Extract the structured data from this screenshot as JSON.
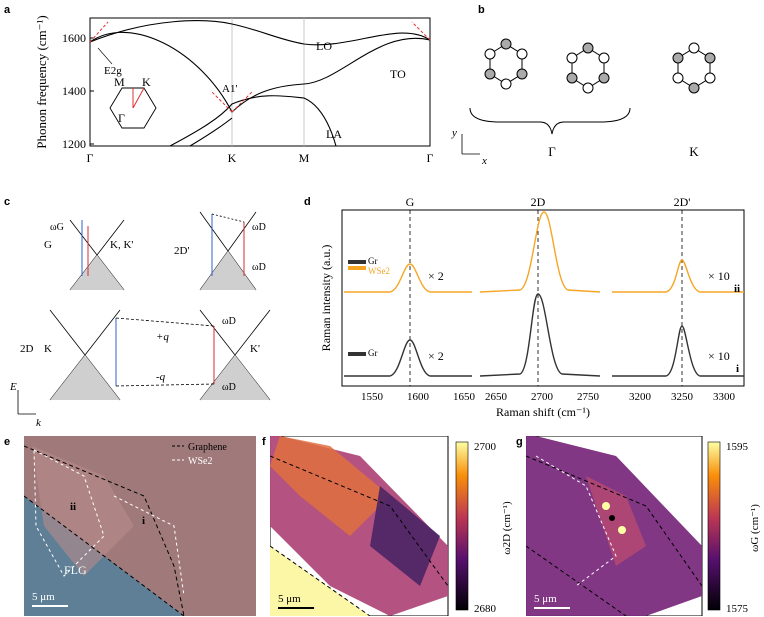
{
  "panel_labels": [
    "a",
    "b",
    "c",
    "d",
    "e",
    "f",
    "g"
  ],
  "panel_a": {
    "ylabel": "Phonon frequency (cm⁻¹)",
    "yticks": [
      "1200",
      "1400",
      "1600"
    ],
    "xticks": [
      "Γ",
      "K",
      "M",
      "Γ"
    ],
    "branch_labels": [
      "LO",
      "TO",
      "LA"
    ],
    "mode_labels": [
      "E2g",
      "A1'"
    ],
    "bz_labels": [
      "M",
      "K",
      "Γ"
    ]
  },
  "panel_b": {
    "gamma_label": "Γ",
    "k_label": "K",
    "axis_x": "x",
    "axis_y": "y"
  },
  "panel_c": {
    "g_label": "G",
    "kk_label": "K, K'",
    "d2p_label": "2D'",
    "omega_g": "ωG",
    "omega_d": "ωD",
    "d2_label": "2D",
    "k_label": "K",
    "kp_label": "K'",
    "plus_q": "+q",
    "minus_q": "-q",
    "e_axis": "E",
    "k_axis": "k"
  },
  "panel_d": {
    "ylabel": "Raman intensity (a.u.)",
    "xlabel": "Raman shift (cm⁻¹)",
    "peak_labels": [
      "G",
      "2D",
      "2D'"
    ],
    "xticks_1": [
      "1550",
      "1600",
      "1650"
    ],
    "xticks_2": [
      "2650",
      "2700",
      "2750"
    ],
    "xticks_3": [
      "3200",
      "3250",
      "3300"
    ],
    "mult_2": "× 2",
    "mult_10": "× 10",
    "row_labels": [
      "ii",
      "i"
    ],
    "legend_top": [
      "Gr",
      "WSe2"
    ],
    "legend_bottom": [
      "Gr"
    ],
    "colors": {
      "wse2": "#f5a623",
      "gr": "#333333"
    }
  },
  "panel_e": {
    "legend": [
      "Graphene",
      "WSe2"
    ],
    "region_labels": [
      "ii",
      "i",
      "FLG"
    ],
    "scalebar": "5 μm"
  },
  "panel_f": {
    "cbar_max": "2700",
    "cbar_min": "2680",
    "cbar_label": "ω2D (cm⁻¹)",
    "scalebar": "5 μm"
  },
  "panel_g": {
    "cbar_max": "1595",
    "cbar_min": "1575",
    "cbar_label": "ωG (cm⁻¹)",
    "scalebar": "5 μm"
  }
}
